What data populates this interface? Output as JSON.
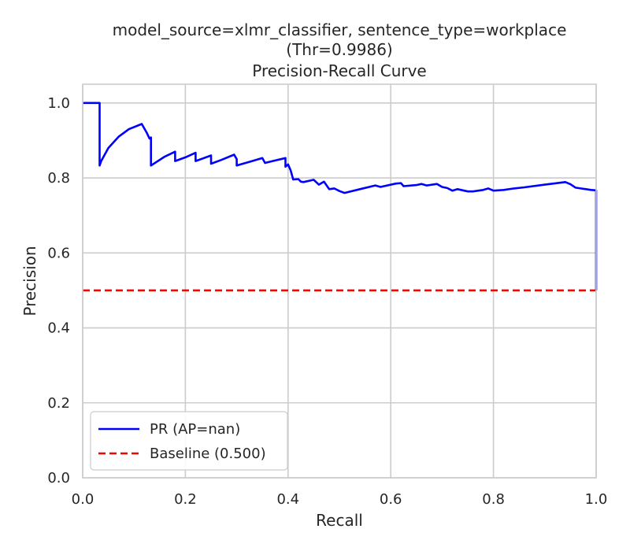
{
  "chart_data": {
    "type": "line",
    "title_lines": [
      "model_source=xlmr_classifier, sentence_type=workplace",
      "(Thr=0.9986)",
      "Precision-Recall Curve"
    ],
    "xlabel": "Recall",
    "ylabel": "Precision",
    "xlim": [
      0.0,
      1.0
    ],
    "ylim": [
      0.0,
      1.05
    ],
    "xticks": [
      "0.0",
      "0.2",
      "0.4",
      "0.6",
      "0.8",
      "1.0"
    ],
    "yticks": [
      "0.0",
      "0.2",
      "0.4",
      "0.6",
      "0.8",
      "1.0"
    ],
    "grid": true,
    "legend_position": "lower-left",
    "series": [
      {
        "name": "PR (AP=nan)",
        "color": "#0000ff",
        "style": "solid",
        "x": [
          0.0,
          0.033,
          0.033,
          0.036,
          0.05,
          0.07,
          0.09,
          0.115,
          0.125,
          0.13,
          0.133,
          0.133,
          0.16,
          0.18,
          0.18,
          0.2,
          0.22,
          0.22,
          0.24,
          0.25,
          0.25,
          0.27,
          0.295,
          0.3,
          0.3,
          0.33,
          0.35,
          0.355,
          0.37,
          0.395,
          0.395,
          0.4,
          0.405,
          0.41,
          0.42,
          0.425,
          0.43,
          0.45,
          0.46,
          0.47,
          0.48,
          0.49,
          0.5,
          0.51,
          0.54,
          0.57,
          0.58,
          0.61,
          0.62,
          0.625,
          0.65,
          0.66,
          0.67,
          0.69,
          0.7,
          0.71,
          0.72,
          0.73,
          0.75,
          0.76,
          0.78,
          0.79,
          0.8,
          0.82,
          0.84,
          0.86,
          0.9,
          0.94,
          0.95,
          0.96,
          0.97,
          0.98,
          0.99,
          1.0,
          1.0
        ],
        "y": [
          1.0,
          1.0,
          0.833,
          0.845,
          0.88,
          0.91,
          0.93,
          0.944,
          0.92,
          0.905,
          0.908,
          0.833,
          0.857,
          0.87,
          0.845,
          0.855,
          0.867,
          0.845,
          0.855,
          0.86,
          0.838,
          0.848,
          0.862,
          0.85,
          0.833,
          0.845,
          0.853,
          0.84,
          0.845,
          0.853,
          0.83,
          0.836,
          0.82,
          0.796,
          0.797,
          0.79,
          0.789,
          0.795,
          0.782,
          0.79,
          0.77,
          0.772,
          0.765,
          0.76,
          0.77,
          0.78,
          0.776,
          0.785,
          0.786,
          0.778,
          0.781,
          0.784,
          0.78,
          0.784,
          0.776,
          0.773,
          0.766,
          0.77,
          0.764,
          0.764,
          0.768,
          0.772,
          0.766,
          0.768,
          0.772,
          0.775,
          0.782,
          0.789,
          0.783,
          0.774,
          0.772,
          0.77,
          0.768,
          0.767,
          0.5
        ]
      },
      {
        "name": "Baseline (0.500)",
        "color": "#ff0000",
        "style": "dashed",
        "x": [
          0.0,
          1.0
        ],
        "y": [
          0.5,
          0.5
        ]
      }
    ]
  }
}
